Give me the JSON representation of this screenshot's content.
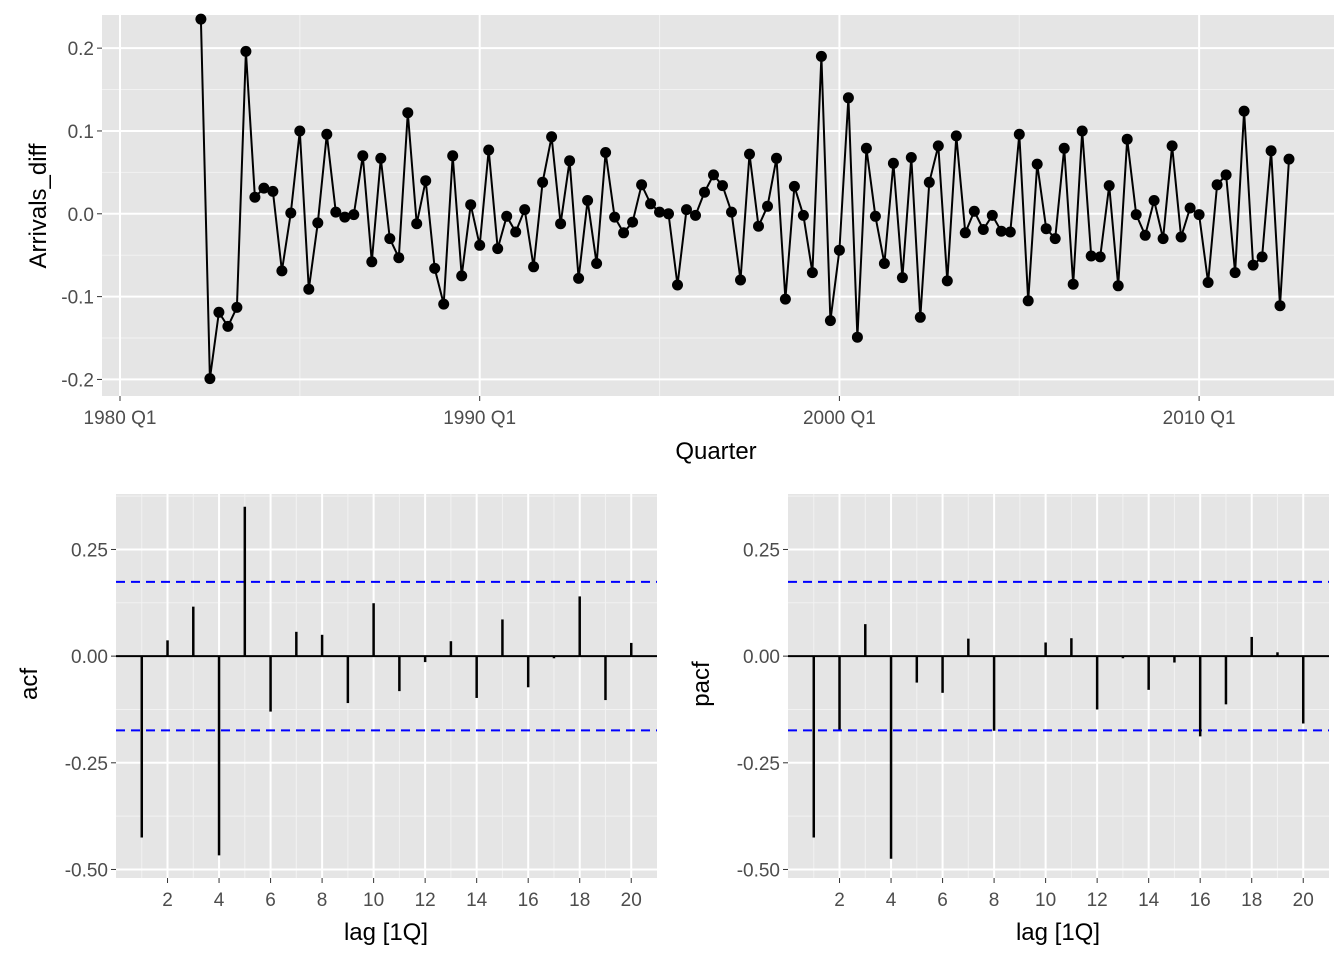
{
  "chart_data": [
    {
      "type": "line",
      "xlabel": "Quarter",
      "ylabel": "Arrivals_diff",
      "x_ticks": [
        "1980 Q1",
        "1990 Q1",
        "2000 Q1",
        "2010 Q1"
      ],
      "y_ticks": [
        "-0.2",
        "-0.1",
        "0.0",
        "0.1",
        "0.2"
      ],
      "ylim": [
        -0.22,
        0.24
      ],
      "xlim": [
        1979.5,
        2013.75
      ],
      "start_quarter": "1982 Q2",
      "end_quarter": "2012 Q3",
      "markers": true,
      "series": [
        {
          "values": [
            0.235,
            -0.199,
            -0.119,
            -0.136,
            -0.113,
            0.196,
            0.02,
            0.031,
            0.027,
            -0.069,
            0.001,
            0.1,
            -0.091,
            -0.011,
            0.096,
            0.002,
            -0.004,
            -0.001,
            0.07,
            -0.058,
            0.067,
            -0.03,
            -0.053,
            0.122,
            -0.012,
            0.04,
            -0.066,
            -0.109,
            0.07,
            -0.075,
            0.011,
            -0.038,
            0.077,
            -0.042,
            -0.003,
            -0.022,
            0.005,
            -0.064,
            0.038,
            0.093,
            -0.012,
            0.064,
            -0.078,
            0.016,
            -0.06,
            0.074,
            -0.004,
            -0.023,
            -0.01,
            0.035,
            0.012,
            0.002,
            0.0,
            -0.086,
            0.005,
            -0.002,
            0.026,
            0.047,
            0.034,
            0.002,
            -0.08,
            0.072,
            -0.015,
            0.009,
            0.067,
            -0.103,
            0.033,
            -0.002,
            -0.071,
            0.19,
            -0.129,
            -0.044,
            0.14,
            -0.149,
            0.079,
            -0.003,
            -0.06,
            0.061,
            -0.077,
            0.068,
            -0.125,
            0.038,
            0.082,
            -0.081,
            0.094,
            -0.023,
            0.003,
            -0.019,
            -0.002,
            -0.021,
            -0.022,
            0.096,
            -0.105,
            0.06,
            -0.018,
            -0.03,
            0.079,
            -0.085,
            0.1,
            -0.051,
            -0.052,
            0.034,
            -0.087,
            0.09,
            -0.001,
            -0.026,
            0.016,
            -0.03,
            0.082,
            -0.028,
            0.007,
            -0.001,
            -0.083,
            0.035,
            0.047,
            -0.071,
            0.124,
            -0.062,
            -0.052,
            0.076,
            -0.111,
            0.066
          ]
        }
      ]
    },
    {
      "type": "bar",
      "xlabel": "lag [1Q]",
      "ylabel": "acf",
      "x_ticks": [
        "2",
        "4",
        "6",
        "8",
        "10",
        "12",
        "14",
        "16",
        "18",
        "20"
      ],
      "y_ticks": [
        "-0.50",
        "-0.25",
        "0.00",
        "0.25"
      ],
      "ylim": [
        -0.52,
        0.38
      ],
      "xlim": [
        0,
        21
      ],
      "lags": [
        1,
        2,
        3,
        4,
        5,
        6,
        7,
        8,
        9,
        10,
        11,
        12,
        13,
        14,
        15,
        16,
        17,
        18,
        19,
        20
      ],
      "values": [
        -0.425,
        0.037,
        0.116,
        -0.467,
        0.35,
        -0.13,
        0.057,
        0.05,
        -0.11,
        0.124,
        -0.082,
        -0.014,
        0.035,
        -0.098,
        0.086,
        -0.073,
        -0.005,
        0.14,
        -0.103,
        0.031
      ],
      "ci": 0.174,
      "colors": {
        "bar": "#000000",
        "ci_line": "#0000ff"
      }
    },
    {
      "type": "bar",
      "xlabel": "lag [1Q]",
      "ylabel": "pacf",
      "x_ticks": [
        "2",
        "4",
        "6",
        "8",
        "10",
        "12",
        "14",
        "16",
        "18",
        "20"
      ],
      "y_ticks": [
        "-0.50",
        "-0.25",
        "0.00",
        "0.25"
      ],
      "ylim": [
        -0.52,
        0.38
      ],
      "xlim": [
        0,
        21
      ],
      "lags": [
        1,
        2,
        3,
        4,
        5,
        6,
        7,
        8,
        9,
        10,
        11,
        12,
        13,
        14,
        15,
        16,
        17,
        18,
        19,
        20
      ],
      "values": [
        -0.425,
        -0.172,
        0.075,
        -0.475,
        -0.062,
        -0.086,
        0.041,
        -0.175,
        -0.002,
        0.032,
        0.042,
        -0.125,
        -0.005,
        -0.079,
        -0.015,
        -0.188,
        -0.113,
        0.045,
        0.009,
        -0.158
      ],
      "ci": 0.174,
      "colors": {
        "bar": "#000000",
        "ci_line": "#0000ff"
      }
    }
  ]
}
